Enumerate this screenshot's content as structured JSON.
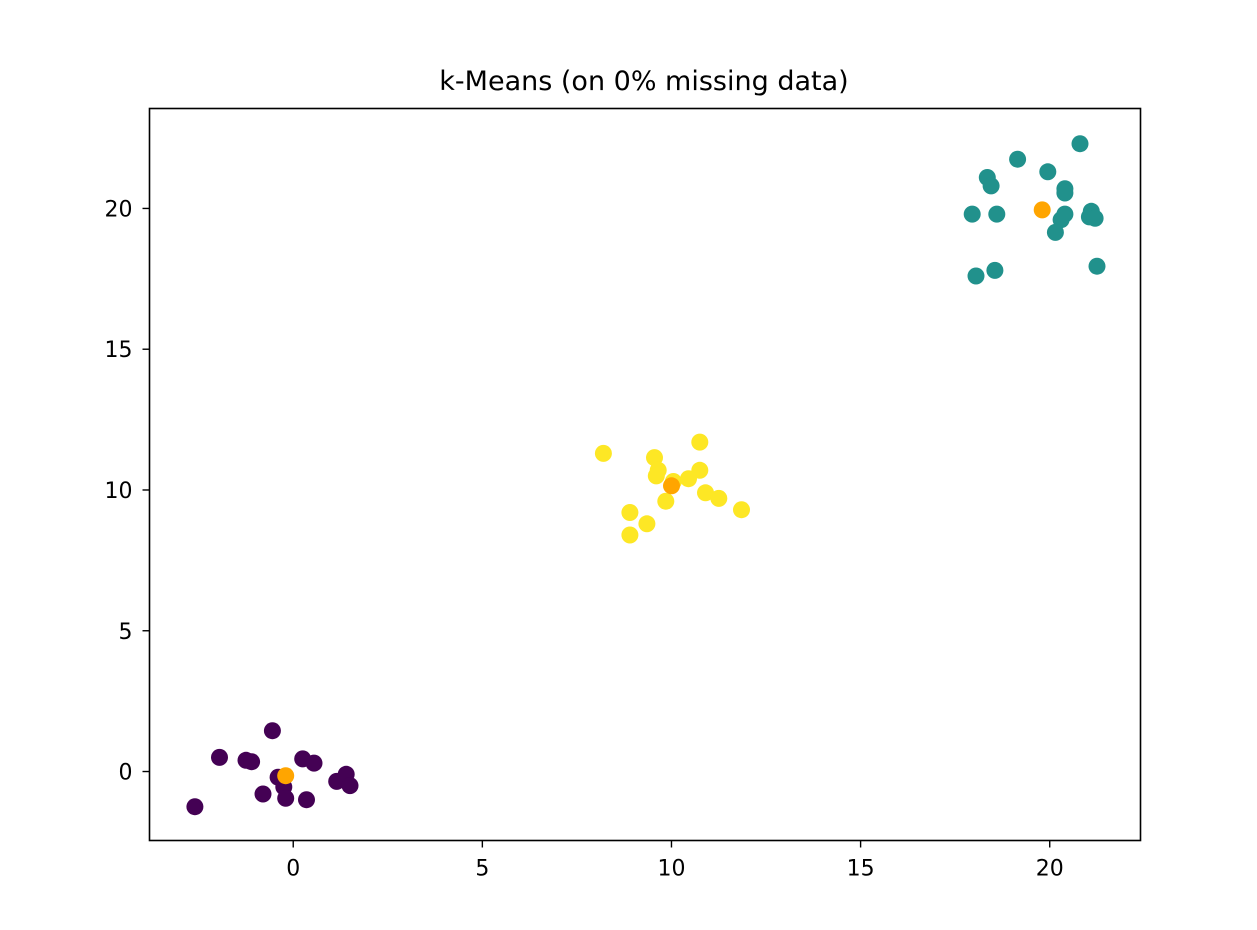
{
  "chart_data": {
    "type": "scatter",
    "title": "k-Means (on 0% missing data)",
    "xlabel": "",
    "ylabel": "",
    "xlim": [
      -3.8,
      22.4
    ],
    "ylim": [
      -2.45,
      23.55
    ],
    "xticks": [
      0,
      5,
      10,
      15,
      20
    ],
    "yticks": [
      0,
      5,
      10,
      15,
      20
    ],
    "grid": false,
    "legend": "none",
    "series": [
      {
        "cluster": 0,
        "color": "#440154",
        "points": [
          [
            -2.6,
            -1.25
          ],
          [
            -1.95,
            0.5
          ],
          [
            -1.25,
            0.4
          ],
          [
            -1.1,
            0.35
          ],
          [
            -0.55,
            1.45
          ],
          [
            -0.8,
            -0.8
          ],
          [
            -0.4,
            -0.2
          ],
          [
            -0.25,
            -0.55
          ],
          [
            -0.2,
            -0.95
          ],
          [
            0.25,
            0.45
          ],
          [
            0.55,
            0.3
          ],
          [
            0.35,
            -1.0
          ],
          [
            1.15,
            -0.35
          ],
          [
            1.4,
            -0.1
          ],
          [
            1.5,
            -0.5
          ]
        ]
      },
      {
        "cluster": 1,
        "color": "#21918c",
        "points": [
          [
            18.35,
            21.1
          ],
          [
            18.45,
            20.8
          ],
          [
            19.15,
            21.75
          ],
          [
            19.95,
            21.3
          ],
          [
            20.8,
            22.3
          ],
          [
            20.4,
            20.7
          ],
          [
            20.4,
            20.55
          ],
          [
            17.95,
            19.8
          ],
          [
            18.6,
            19.8
          ],
          [
            20.3,
            19.6
          ],
          [
            20.4,
            19.8
          ],
          [
            20.15,
            19.15
          ],
          [
            21.1,
            19.9
          ],
          [
            21.05,
            19.7
          ],
          [
            21.2,
            19.65
          ],
          [
            18.05,
            17.6
          ],
          [
            18.55,
            17.8
          ],
          [
            21.25,
            17.95
          ]
        ]
      },
      {
        "cluster": 2,
        "color": "#fde725",
        "points": [
          [
            8.2,
            11.3
          ],
          [
            9.55,
            11.15
          ],
          [
            9.65,
            10.7
          ],
          [
            9.6,
            10.5
          ],
          [
            10.05,
            10.3
          ],
          [
            10.45,
            10.4
          ],
          [
            10.75,
            10.7
          ],
          [
            10.75,
            11.7
          ],
          [
            10.9,
            9.9
          ],
          [
            11.25,
            9.7
          ],
          [
            11.85,
            9.3
          ],
          [
            9.85,
            9.6
          ],
          [
            8.9,
            9.2
          ],
          [
            9.35,
            8.8
          ],
          [
            8.9,
            8.4
          ]
        ]
      }
    ],
    "centroids": {
      "color": "#ffa500",
      "points": [
        [
          -0.2,
          -0.15
        ],
        [
          19.8,
          19.95
        ],
        [
          10.0,
          10.15
        ]
      ]
    }
  }
}
